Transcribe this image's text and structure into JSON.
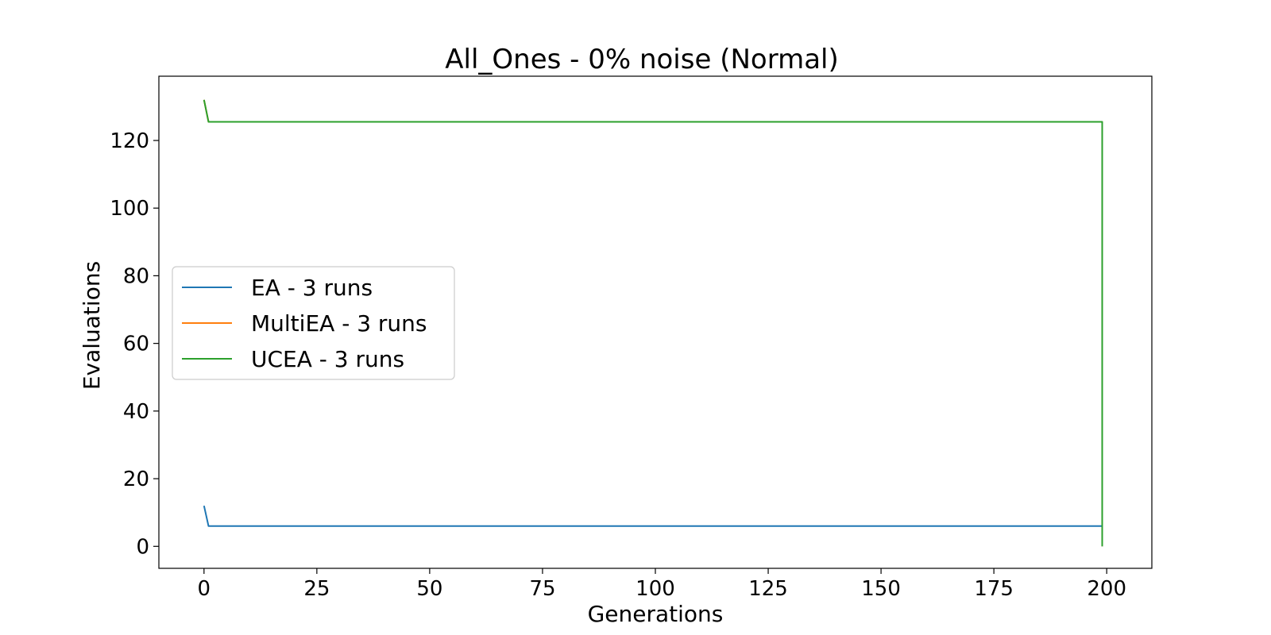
{
  "chart_data": {
    "type": "line",
    "title": "All_Ones - 0% noise (Normal)",
    "xlabel": "Generations",
    "ylabel": "Evaluations",
    "xlim": [
      -10,
      210
    ],
    "ylim": [
      -6.5,
      139
    ],
    "xticks": [
      0,
      25,
      50,
      75,
      100,
      125,
      150,
      175,
      200
    ],
    "yticks": [
      0,
      20,
      40,
      60,
      80,
      100,
      120
    ],
    "grid": false,
    "legend_position": "center-left",
    "series": [
      {
        "name": "EA - 3 runs",
        "color": "#1f77b4",
        "points": [
          [
            0,
            12
          ],
          [
            1,
            6
          ],
          [
            199,
            6
          ],
          [
            199,
            0
          ]
        ]
      },
      {
        "name": "MultiEA - 3 runs",
        "color": "#ff7f0e",
        "points": [
          [
            0,
            132
          ],
          [
            1,
            125.5
          ],
          [
            199,
            125.5
          ],
          [
            199,
            0
          ]
        ]
      },
      {
        "name": "UCEA - 3 runs",
        "color": "#2ca02c",
        "points": [
          [
            0,
            132
          ],
          [
            1,
            125.5
          ],
          [
            199,
            125.5
          ],
          [
            199,
            0
          ]
        ]
      }
    ]
  }
}
